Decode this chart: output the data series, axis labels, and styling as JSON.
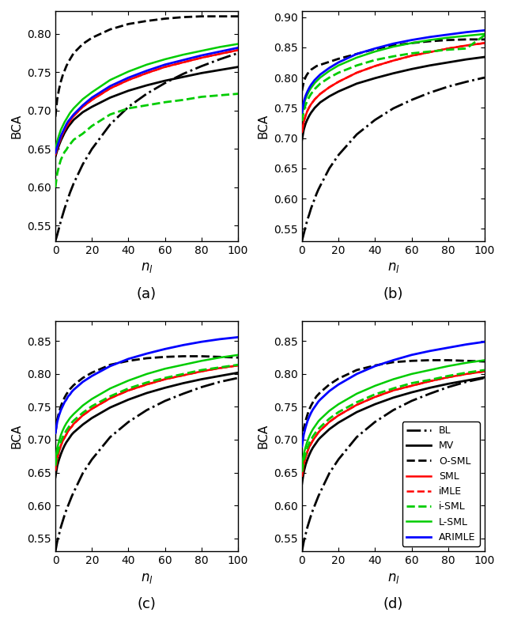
{
  "x": [
    0,
    1,
    2,
    3,
    4,
    5,
    6,
    7,
    8,
    9,
    10,
    15,
    20,
    30,
    40,
    50,
    60,
    70,
    80,
    90,
    100
  ],
  "subplots": {
    "a": {
      "ylim": [
        0.53,
        0.83
      ],
      "yticks": [
        0.55,
        0.6,
        0.65,
        0.7,
        0.75,
        0.8
      ],
      "BL": [
        0.53,
        0.538,
        0.547,
        0.556,
        0.564,
        0.572,
        0.579,
        0.586,
        0.593,
        0.599,
        0.605,
        0.63,
        0.65,
        0.682,
        0.705,
        0.722,
        0.736,
        0.748,
        0.758,
        0.767,
        0.775
      ],
      "MV": [
        0.64,
        0.648,
        0.655,
        0.661,
        0.666,
        0.671,
        0.675,
        0.679,
        0.682,
        0.685,
        0.688,
        0.698,
        0.705,
        0.717,
        0.726,
        0.733,
        0.739,
        0.744,
        0.749,
        0.753,
        0.757
      ],
      "O-SML": [
        0.692,
        0.715,
        0.728,
        0.738,
        0.746,
        0.752,
        0.758,
        0.763,
        0.767,
        0.771,
        0.775,
        0.787,
        0.795,
        0.806,
        0.813,
        0.817,
        0.82,
        0.822,
        0.823,
        0.823,
        0.823
      ],
      "SML": [
        0.643,
        0.651,
        0.658,
        0.664,
        0.67,
        0.675,
        0.679,
        0.683,
        0.686,
        0.69,
        0.693,
        0.705,
        0.714,
        0.729,
        0.74,
        0.749,
        0.757,
        0.763,
        0.769,
        0.774,
        0.779
      ],
      "iMLE": [
        0.643,
        0.651,
        0.658,
        0.664,
        0.67,
        0.675,
        0.679,
        0.683,
        0.686,
        0.69,
        0.693,
        0.705,
        0.714,
        0.729,
        0.74,
        0.749,
        0.757,
        0.763,
        0.769,
        0.774,
        0.779
      ],
      "i-SML": [
        0.6,
        0.618,
        0.628,
        0.636,
        0.641,
        0.646,
        0.649,
        0.653,
        0.656,
        0.659,
        0.662,
        0.67,
        0.68,
        0.695,
        0.703,
        0.707,
        0.711,
        0.714,
        0.718,
        0.72,
        0.722
      ],
      "L-SML": [
        0.65,
        0.66,
        0.668,
        0.675,
        0.68,
        0.685,
        0.689,
        0.693,
        0.697,
        0.7,
        0.703,
        0.715,
        0.724,
        0.74,
        0.751,
        0.76,
        0.767,
        0.773,
        0.778,
        0.783,
        0.787
      ],
      "ARIMLE": [
        0.645,
        0.653,
        0.66,
        0.667,
        0.672,
        0.677,
        0.682,
        0.686,
        0.689,
        0.692,
        0.695,
        0.707,
        0.717,
        0.732,
        0.743,
        0.752,
        0.76,
        0.766,
        0.772,
        0.777,
        0.782
      ]
    },
    "b": {
      "ylim": [
        0.53,
        0.91
      ],
      "yticks": [
        0.55,
        0.6,
        0.65,
        0.7,
        0.75,
        0.8,
        0.85,
        0.9
      ],
      "BL": [
        0.53,
        0.542,
        0.554,
        0.565,
        0.574,
        0.584,
        0.592,
        0.6,
        0.608,
        0.615,
        0.621,
        0.65,
        0.672,
        0.706,
        0.73,
        0.749,
        0.763,
        0.775,
        0.785,
        0.793,
        0.8
      ],
      "MV": [
        0.697,
        0.714,
        0.724,
        0.731,
        0.737,
        0.742,
        0.746,
        0.75,
        0.753,
        0.756,
        0.759,
        0.769,
        0.777,
        0.79,
        0.799,
        0.807,
        0.814,
        0.82,
        0.825,
        0.83,
        0.834
      ],
      "O-SML": [
        0.778,
        0.793,
        0.801,
        0.806,
        0.81,
        0.813,
        0.815,
        0.817,
        0.819,
        0.82,
        0.821,
        0.826,
        0.831,
        0.839,
        0.847,
        0.853,
        0.857,
        0.86,
        0.862,
        0.863,
        0.863
      ],
      "SML": [
        0.71,
        0.727,
        0.737,
        0.745,
        0.751,
        0.756,
        0.76,
        0.764,
        0.767,
        0.77,
        0.773,
        0.784,
        0.793,
        0.808,
        0.819,
        0.828,
        0.836,
        0.842,
        0.848,
        0.853,
        0.857
      ],
      "iMLE": [
        0.71,
        0.727,
        0.737,
        0.745,
        0.751,
        0.756,
        0.76,
        0.764,
        0.767,
        0.77,
        0.773,
        0.784,
        0.793,
        0.808,
        0.819,
        0.828,
        0.836,
        0.842,
        0.848,
        0.853,
        0.857
      ],
      "i-SML": [
        0.728,
        0.745,
        0.755,
        0.762,
        0.768,
        0.773,
        0.777,
        0.781,
        0.784,
        0.787,
        0.79,
        0.8,
        0.808,
        0.82,
        0.829,
        0.835,
        0.84,
        0.843,
        0.846,
        0.848,
        0.87
      ],
      "L-SML": [
        0.737,
        0.755,
        0.765,
        0.772,
        0.778,
        0.783,
        0.787,
        0.791,
        0.794,
        0.797,
        0.8,
        0.811,
        0.82,
        0.833,
        0.843,
        0.851,
        0.857,
        0.862,
        0.866,
        0.869,
        0.872
      ],
      "ARIMLE": [
        0.742,
        0.76,
        0.77,
        0.777,
        0.783,
        0.788,
        0.792,
        0.796,
        0.799,
        0.802,
        0.805,
        0.816,
        0.825,
        0.839,
        0.848,
        0.856,
        0.862,
        0.867,
        0.871,
        0.875,
        0.878
      ]
    },
    "c": {
      "ylim": [
        0.53,
        0.88
      ],
      "yticks": [
        0.55,
        0.6,
        0.65,
        0.7,
        0.75,
        0.8,
        0.85
      ],
      "BL": [
        0.53,
        0.545,
        0.556,
        0.567,
        0.576,
        0.585,
        0.593,
        0.6,
        0.607,
        0.614,
        0.62,
        0.649,
        0.67,
        0.704,
        0.727,
        0.745,
        0.759,
        0.77,
        0.78,
        0.788,
        0.794
      ],
      "MV": [
        0.643,
        0.66,
        0.67,
        0.678,
        0.685,
        0.691,
        0.696,
        0.7,
        0.704,
        0.708,
        0.711,
        0.723,
        0.733,
        0.749,
        0.761,
        0.771,
        0.779,
        0.786,
        0.792,
        0.797,
        0.802
      ],
      "O-SML": [
        0.71,
        0.73,
        0.742,
        0.751,
        0.758,
        0.764,
        0.769,
        0.773,
        0.777,
        0.78,
        0.783,
        0.794,
        0.802,
        0.814,
        0.82,
        0.824,
        0.826,
        0.827,
        0.827,
        0.826,
        0.825
      ],
      "SML": [
        0.654,
        0.672,
        0.682,
        0.691,
        0.698,
        0.703,
        0.708,
        0.713,
        0.717,
        0.72,
        0.724,
        0.737,
        0.747,
        0.763,
        0.775,
        0.784,
        0.792,
        0.798,
        0.804,
        0.809,
        0.813
      ],
      "iMLE": [
        0.654,
        0.672,
        0.682,
        0.691,
        0.698,
        0.703,
        0.708,
        0.713,
        0.717,
        0.72,
        0.724,
        0.737,
        0.747,
        0.763,
        0.775,
        0.784,
        0.792,
        0.798,
        0.804,
        0.809,
        0.813
      ],
      "i-SML": [
        0.66,
        0.678,
        0.688,
        0.697,
        0.704,
        0.709,
        0.714,
        0.718,
        0.722,
        0.726,
        0.729,
        0.741,
        0.751,
        0.766,
        0.778,
        0.787,
        0.794,
        0.8,
        0.806,
        0.81,
        0.814
      ],
      "L-SML": [
        0.669,
        0.687,
        0.698,
        0.707,
        0.714,
        0.72,
        0.725,
        0.729,
        0.733,
        0.736,
        0.739,
        0.752,
        0.762,
        0.778,
        0.79,
        0.8,
        0.808,
        0.814,
        0.82,
        0.825,
        0.829
      ],
      "ARIMLE": [
        0.71,
        0.727,
        0.737,
        0.745,
        0.751,
        0.757,
        0.761,
        0.766,
        0.769,
        0.773,
        0.776,
        0.788,
        0.797,
        0.812,
        0.823,
        0.831,
        0.838,
        0.844,
        0.849,
        0.853,
        0.856
      ]
    },
    "d": {
      "ylim": [
        0.53,
        0.88
      ],
      "yticks": [
        0.55,
        0.6,
        0.65,
        0.7,
        0.75,
        0.8,
        0.85
      ],
      "BL": [
        0.53,
        0.545,
        0.556,
        0.567,
        0.576,
        0.585,
        0.593,
        0.6,
        0.607,
        0.614,
        0.62,
        0.649,
        0.67,
        0.704,
        0.727,
        0.745,
        0.759,
        0.77,
        0.78,
        0.788,
        0.794
      ],
      "MV": [
        0.633,
        0.651,
        0.662,
        0.67,
        0.677,
        0.683,
        0.688,
        0.692,
        0.696,
        0.7,
        0.703,
        0.716,
        0.726,
        0.742,
        0.754,
        0.764,
        0.772,
        0.779,
        0.785,
        0.79,
        0.795
      ],
      "O-SML": [
        0.695,
        0.717,
        0.729,
        0.738,
        0.746,
        0.752,
        0.757,
        0.762,
        0.766,
        0.769,
        0.772,
        0.784,
        0.793,
        0.806,
        0.813,
        0.818,
        0.82,
        0.821,
        0.821,
        0.82,
        0.819
      ],
      "SML": [
        0.645,
        0.663,
        0.673,
        0.682,
        0.689,
        0.694,
        0.699,
        0.703,
        0.707,
        0.711,
        0.714,
        0.727,
        0.737,
        0.753,
        0.765,
        0.775,
        0.782,
        0.789,
        0.795,
        0.8,
        0.804
      ],
      "iMLE": [
        0.645,
        0.663,
        0.673,
        0.682,
        0.689,
        0.694,
        0.699,
        0.703,
        0.707,
        0.711,
        0.714,
        0.727,
        0.737,
        0.753,
        0.765,
        0.775,
        0.782,
        0.789,
        0.795,
        0.8,
        0.804
      ],
      "i-SML": [
        0.651,
        0.669,
        0.679,
        0.688,
        0.695,
        0.7,
        0.705,
        0.709,
        0.713,
        0.716,
        0.719,
        0.732,
        0.742,
        0.757,
        0.769,
        0.778,
        0.786,
        0.791,
        0.797,
        0.802,
        0.806
      ],
      "L-SML": [
        0.66,
        0.678,
        0.689,
        0.698,
        0.705,
        0.711,
        0.716,
        0.72,
        0.724,
        0.728,
        0.731,
        0.744,
        0.754,
        0.77,
        0.782,
        0.792,
        0.8,
        0.806,
        0.812,
        0.817,
        0.821
      ],
      "ARIMLE": [
        0.69,
        0.708,
        0.719,
        0.728,
        0.735,
        0.741,
        0.746,
        0.75,
        0.754,
        0.758,
        0.761,
        0.774,
        0.784,
        0.8,
        0.812,
        0.821,
        0.829,
        0.835,
        0.84,
        0.845,
        0.849
      ]
    }
  },
  "series_styles": {
    "BL": {
      "color": "#000000",
      "linestyle": "-.",
      "linewidth": 2.0,
      "zorder": 1
    },
    "MV": {
      "color": "#000000",
      "linestyle": "-",
      "linewidth": 2.0,
      "zorder": 2
    },
    "O-SML": {
      "color": "#000000",
      "linestyle": "--",
      "linewidth": 2.0,
      "zorder": 3
    },
    "SML": {
      "color": "#ff0000",
      "linestyle": "-",
      "linewidth": 1.8,
      "zorder": 4
    },
    "iMLE": {
      "color": "#ff0000",
      "linestyle": "--",
      "linewidth": 1.8,
      "zorder": 5
    },
    "i-SML": {
      "color": "#00cc00",
      "linestyle": "--",
      "linewidth": 2.0,
      "zorder": 6
    },
    "L-SML": {
      "color": "#00cc00",
      "linestyle": "-",
      "linewidth": 1.8,
      "zorder": 7
    },
    "ARIMLE": {
      "color": "#0000ff",
      "linestyle": "-",
      "linewidth": 2.0,
      "zorder": 8
    }
  },
  "legend_labels": [
    "BL",
    "MV",
    "O-SML",
    "SML",
    "iMLE",
    "i-SML",
    "L-SML",
    "ARIMLE"
  ],
  "subplot_labels": [
    "(a)",
    "(b)",
    "(c)",
    "(d)"
  ],
  "xlabel": "$n_l$",
  "ylabel": "BCA",
  "xticks": [
    0,
    20,
    40,
    60,
    80,
    100
  ]
}
